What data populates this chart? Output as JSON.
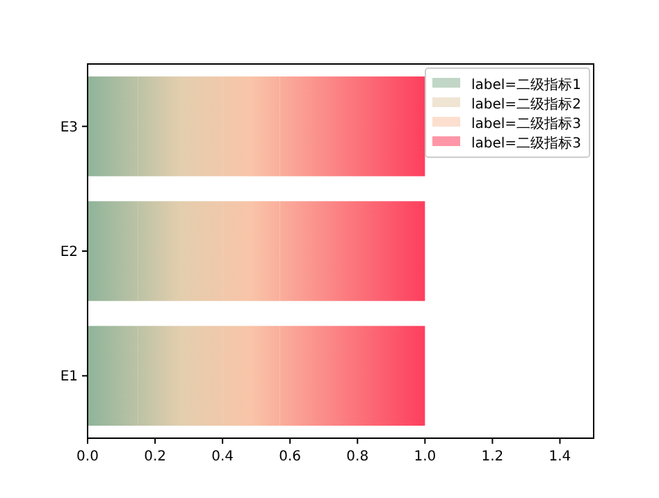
{
  "chart_data": {
    "type": "bar",
    "orientation": "horizontal",
    "stacked": true,
    "categories": [
      "E3",
      "E2",
      "E1"
    ],
    "series": [
      {
        "name": "label=二级指标1",
        "color": "#8fb49a",
        "values": [
          0.15,
          0.15,
          0.15
        ]
      },
      {
        "name": "label=二级指标2",
        "color": "#e3ceae",
        "values": [
          0.25,
          0.25,
          0.25
        ]
      },
      {
        "name": "label=二级指标3",
        "color": "#f9c4a8",
        "values": [
          0.17,
          0.17,
          0.17
        ]
      },
      {
        "name": "label=二级指标3",
        "color": "#fd3f5e",
        "values": [
          0.43,
          0.43,
          0.43
        ]
      }
    ],
    "xlim": [
      0,
      1.5
    ],
    "xticks": [
      {
        "value": 0,
        "label": "0.0"
      },
      {
        "value": 0.2,
        "label": "0.2"
      },
      {
        "value": 0.4,
        "label": "0.4"
      },
      {
        "value": 0.6,
        "label": "0.6"
      },
      {
        "value": 0.8,
        "label": "0.8"
      },
      {
        "value": 1.0,
        "label": "1.0"
      },
      {
        "value": 1.2,
        "label": "1.2"
      },
      {
        "value": 1.4,
        "label": "1.4"
      }
    ],
    "legend": "top right"
  }
}
